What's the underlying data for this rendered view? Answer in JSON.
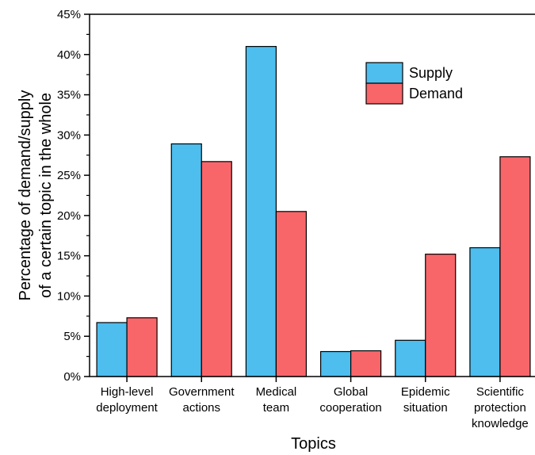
{
  "chart_data": {
    "type": "bar",
    "categories": [
      [
        "High-level",
        "deployment"
      ],
      [
        "Government",
        "actions"
      ],
      [
        "Medical",
        "team"
      ],
      [
        "Global",
        "cooperation"
      ],
      [
        "Epidemic",
        "situation"
      ],
      [
        "Scientific",
        "protection",
        "knowledge"
      ]
    ],
    "series": [
      {
        "name": "Supply",
        "color": "#4DBEEE",
        "values": [
          6.7,
          28.9,
          41.0,
          3.1,
          4.5,
          16.0
        ]
      },
      {
        "name": "Demand",
        "color": "#F8666A",
        "values": [
          7.3,
          26.7,
          20.5,
          3.2,
          15.2,
          27.3
        ]
      }
    ],
    "xlabel": "Topics",
    "ylabel": [
      "Percentage of demand/supply",
      "of a certain topic in the whole"
    ],
    "ylim": [
      0,
      45
    ],
    "yticks": [
      "0%",
      "5%",
      "10%",
      "15%",
      "20%",
      "25%",
      "30%",
      "35%",
      "40%",
      "45%"
    ],
    "ytick_values": [
      0,
      5,
      10,
      15,
      20,
      25,
      30,
      35,
      40,
      45
    ],
    "legend_position": "top-right",
    "grid": false
  }
}
